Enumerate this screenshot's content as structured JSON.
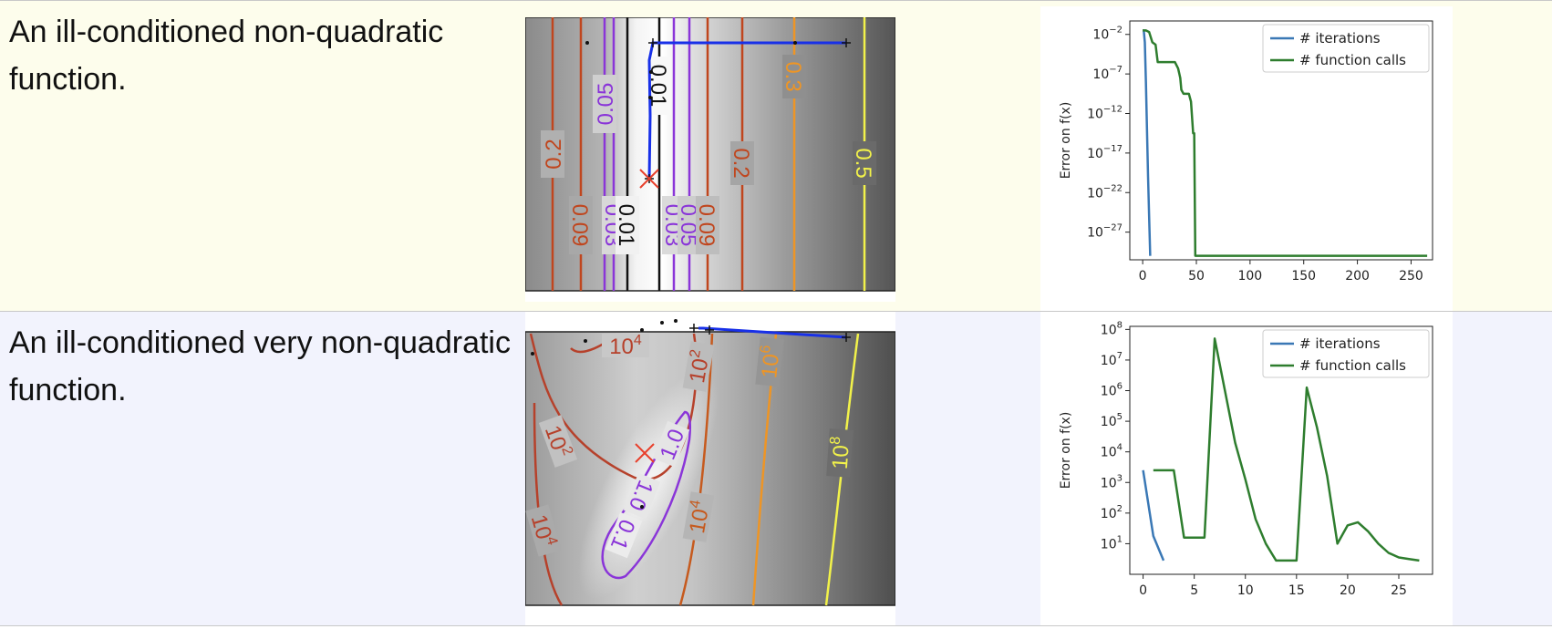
{
  "rows": [
    {
      "caption": "An ill-conditioned non-quadratic function.",
      "contour_labels": [
        "0.2",
        "0.05",
        "0.01",
        "0.3",
        "0.2",
        "0.5",
        "0.09",
        "0.03",
        "0.01",
        "0.03",
        "0.05",
        "0.09"
      ],
      "chart_data": {
        "type": "line",
        "ylabel": "Error on f(x)",
        "yscale": "log",
        "xticks": [
          "0",
          "50",
          "100",
          "150",
          "200",
          "250"
        ],
        "yticks": [
          "10^-2",
          "10^-7",
          "10^-12",
          "10^-17",
          "10^-22",
          "10^-27"
        ],
        "xlim": [
          -12,
          270
        ],
        "ylim_exp": [
          -30.5,
          -0.3
        ],
        "legend": "top-right",
        "series": [
          {
            "name": "# iterations",
            "color": "#3a78b5",
            "x": [
              0,
              1,
              2,
              3,
              4,
              5,
              6,
              7
            ],
            "log10_y": [
              -1.5,
              -1.5,
              -3,
              -8,
              -14,
              -20,
              -25,
              -30
            ]
          },
          {
            "name": "# function calls",
            "color": "#2e7d2e",
            "x": [
              0,
              3,
              6,
              9,
              12,
              14,
              16,
              20,
              23,
              30,
              33,
              35,
              36,
              38,
              43,
              45,
              47,
              48,
              49,
              50,
              265
            ],
            "log10_y": [
              -1.5,
              -1.5,
              -1.7,
              -3.0,
              -3.3,
              -5.5,
              -5.5,
              -5.5,
              -5.5,
              -5.5,
              -6.3,
              -7.5,
              -9.0,
              -9.5,
              -9.5,
              -10.5,
              -14.5,
              -14.5,
              -30.0,
              -30.0,
              -30.0
            ]
          }
        ]
      }
    },
    {
      "caption": "An ill-conditioned very non-quadratic function.",
      "contour_labels": [
        "10^4",
        "10^2",
        "10^6",
        "10^2",
        "1.0",
        "1.0",
        "10^8",
        "0.1",
        "10^4",
        "10^4"
      ],
      "chart_data": {
        "type": "line",
        "ylabel": "Error on f(x)",
        "yscale": "log",
        "xticks": [
          "0",
          "5",
          "10",
          "15",
          "20",
          "25"
        ],
        "yticks": [
          "10^8",
          "10^7",
          "10^6",
          "10^5",
          "10^4",
          "10^3",
          "10^2",
          "10^1"
        ],
        "xlim": [
          -1.3,
          28.3
        ],
        "ylim_exp": [
          0.0,
          8.1
        ],
        "legend": "top-right",
        "series": [
          {
            "name": "# iterations",
            "color": "#3a78b5",
            "x": [
              0,
              1,
              2
            ],
            "log10_y": [
              3.4,
              1.25,
              0.45
            ]
          },
          {
            "name": "# function calls",
            "color": "#2e7d2e",
            "x": [
              1,
              3,
              4,
              5,
              6,
              7,
              8,
              9,
              10,
              11,
              12,
              13,
              14,
              15,
              16,
              17,
              18,
              19,
              20,
              21,
              22,
              23,
              24,
              25,
              26,
              27
            ],
            "log10_y": [
              3.4,
              3.4,
              1.2,
              1.2,
              1.2,
              7.7,
              6.0,
              4.3,
              3.1,
              1.8,
              1.0,
              0.45,
              0.45,
              0.45,
              6.1,
              4.8,
              3.2,
              1.0,
              1.6,
              1.7,
              1.4,
              1.0,
              0.7,
              0.55,
              0.5,
              0.45
            ]
          }
        ]
      }
    }
  ]
}
